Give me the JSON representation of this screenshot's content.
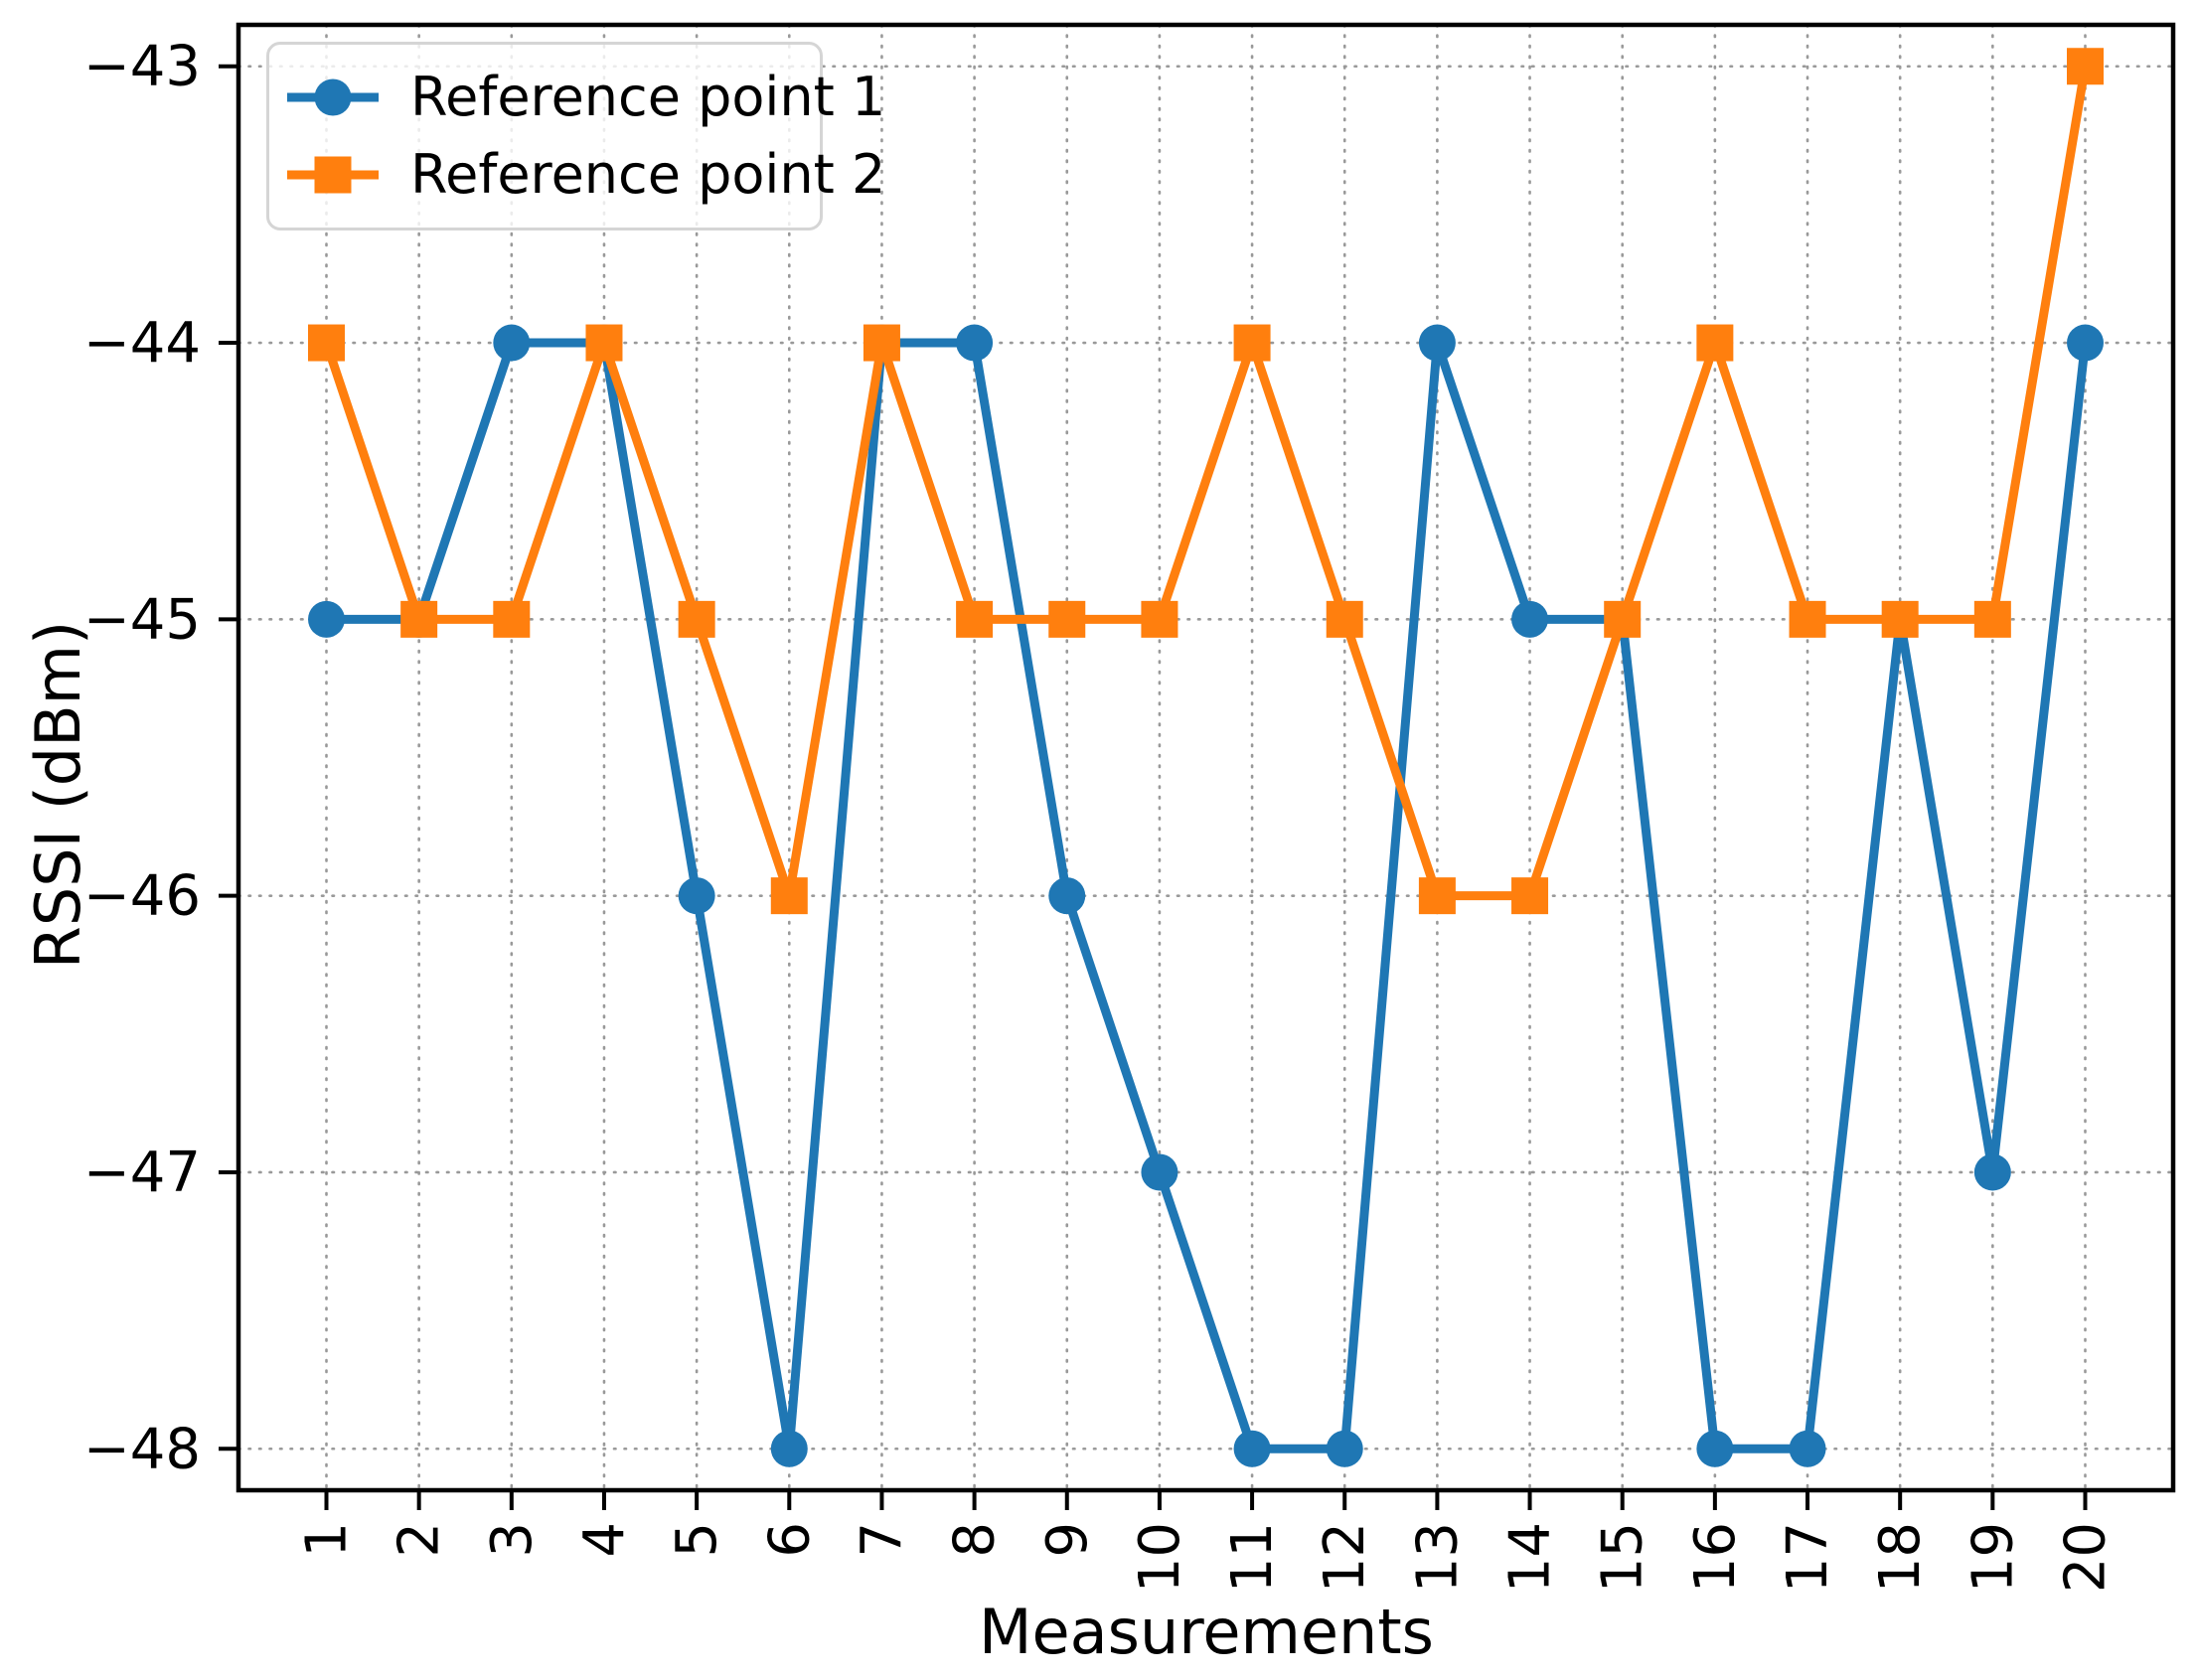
{
  "figure": {
    "background": "#ffffff",
    "text_color": "#000000"
  },
  "chart_data": {
    "type": "line",
    "title": "",
    "xlabel": "Measurements",
    "ylabel": "RSSI (dBm)",
    "categories": [
      "1",
      "2",
      "3",
      "4",
      "5",
      "6",
      "7",
      "8",
      "9",
      "10",
      "11",
      "12",
      "13",
      "14",
      "15",
      "16",
      "17",
      "18",
      "19",
      "20"
    ],
    "x": [
      1,
      2,
      3,
      4,
      5,
      6,
      7,
      8,
      9,
      10,
      11,
      12,
      13,
      14,
      15,
      16,
      17,
      18,
      19,
      20
    ],
    "series": [
      {
        "name": "Reference point 1",
        "color": "#1f77b4",
        "marker": "circle",
        "values": [
          -45,
          -45,
          -44,
          -44,
          -46,
          -48,
          -44,
          -44,
          -46,
          -47,
          -48,
          -48,
          -44,
          -45,
          -45,
          -48,
          -48,
          -45,
          -47,
          -44
        ]
      },
      {
        "name": "Reference point 2",
        "color": "#ff7f0e",
        "marker": "square",
        "values": [
          -44,
          -45,
          -45,
          -44,
          -45,
          -46,
          -44,
          -45,
          -45,
          -45,
          -44,
          -45,
          -46,
          -46,
          -45,
          -44,
          -45,
          -45,
          -45,
          -43
        ]
      }
    ],
    "yticks": {
      "values": [
        -43,
        -44,
        -45,
        -46,
        -47,
        -48
      ],
      "labels": [
        "−43",
        "−44",
        "−45",
        "−46",
        "−47",
        "−48"
      ]
    },
    "xlim": [
      0.05,
      20.95
    ],
    "ylim": [
      -48.15,
      -42.85
    ],
    "grid": {
      "visible": true,
      "style": "dotted",
      "color": "#999999"
    },
    "legend": {
      "position": "upper-left"
    }
  }
}
